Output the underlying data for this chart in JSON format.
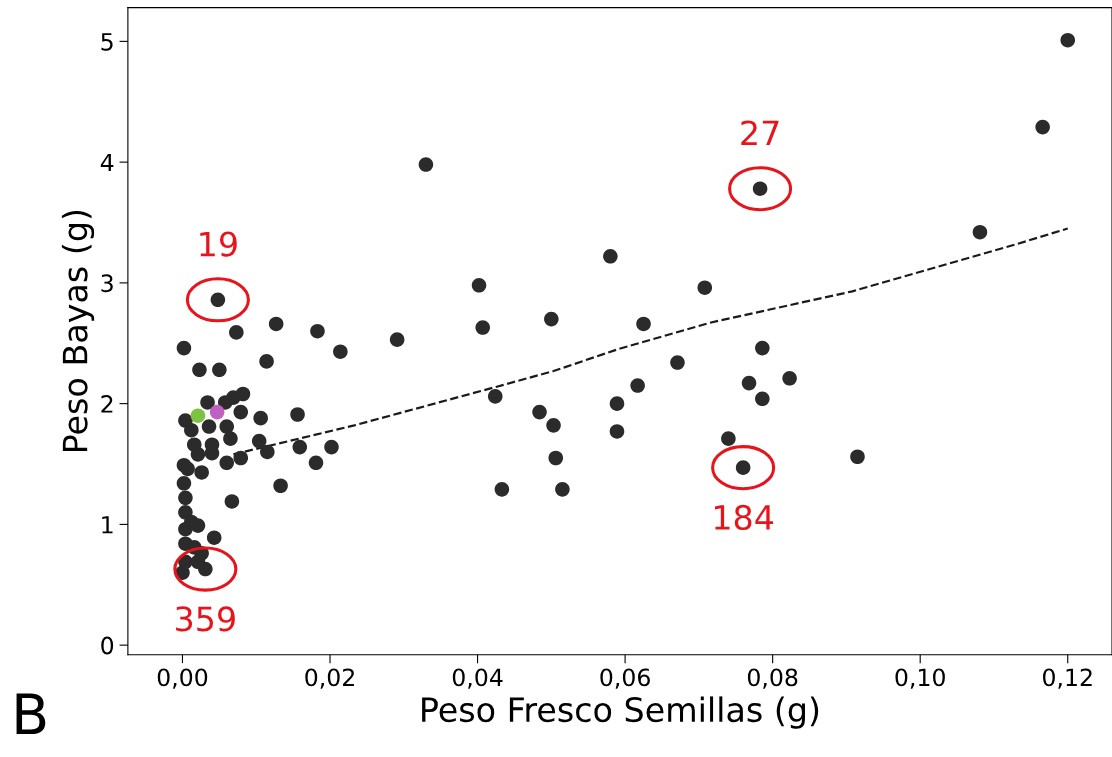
{
  "chart_data": {
    "type": "scatter",
    "xlabel": "Peso Fresco Semillas (g)",
    "ylabel": "Peso Bayas (g)",
    "xlim": [
      -0.0074,
      0.126
    ],
    "ylim": [
      -0.08,
      5.28
    ],
    "xticks": [
      {
        "value": 0.0,
        "label": "0,00"
      },
      {
        "value": 0.02,
        "label": "0,02"
      },
      {
        "value": 0.04,
        "label": "0,04"
      },
      {
        "value": 0.06,
        "label": "0,06"
      },
      {
        "value": 0.08,
        "label": "0,08"
      },
      {
        "value": 0.1,
        "label": "0,10"
      },
      {
        "value": 0.12,
        "label": "0,12"
      }
    ],
    "yticks": [
      0,
      1,
      2,
      3,
      4,
      5
    ],
    "grid": false,
    "marker": "circle",
    "series": [
      {
        "color": "#2b2b2b",
        "x": [
          0.12,
          0.1166,
          0.1081,
          0.033,
          0.0783,
          0.058,
          0.0402,
          0.0708,
          0.05,
          0.0407,
          0.0625,
          0.0291,
          0.0214,
          0.0183,
          0.0127,
          0.0114,
          0.0073,
          0.0048,
          0.0002,
          0.0023,
          0.005,
          0.0786,
          0.0671,
          0.0823,
          0.0768,
          0.0617,
          0.0786,
          0.0589,
          0.0424,
          0.0484,
          0.0503,
          0.0589,
          0.074,
          0.0915,
          0.0506,
          0.076,
          0.0433,
          0.0515,
          0.0156,
          0.0159,
          0.0202,
          0.0181,
          0.0133,
          0.0106,
          0.0104,
          0.0115,
          0.0082,
          0.0067,
          0.0043,
          0.0031,
          0.0,
          0.0004,
          0.0034,
          0.0058,
          0.0069,
          0.0079,
          0.006,
          0.0036,
          0.0012,
          0.0016,
          0.004,
          0.0065,
          0.006,
          0.004,
          0.0021,
          0.0002,
          0.0007,
          0.0026,
          0.0079,
          0.0002,
          0.0004,
          0.0004,
          0.0012,
          0.0004,
          0.0021,
          0.0004,
          0.0016,
          0.0026,
          0.0004,
          0.0021
        ],
        "values": [
          5.01,
          4.29,
          3.42,
          3.98,
          3.78,
          3.22,
          2.98,
          2.96,
          2.7,
          2.63,
          2.66,
          2.53,
          2.43,
          2.6,
          2.66,
          2.35,
          2.59,
          2.86,
          2.46,
          2.28,
          2.28,
          2.46,
          2.34,
          2.21,
          2.17,
          2.15,
          2.04,
          2.0,
          2.06,
          1.93,
          1.82,
          1.77,
          1.71,
          1.56,
          1.55,
          1.47,
          1.29,
          1.29,
          1.91,
          1.64,
          1.64,
          1.51,
          1.32,
          1.88,
          1.69,
          1.6,
          2.08,
          1.19,
          0.89,
          0.63,
          0.6,
          1.86,
          2.01,
          2.01,
          2.05,
          1.93,
          1.81,
          1.81,
          1.78,
          1.66,
          1.66,
          1.71,
          1.51,
          1.59,
          1.58,
          1.49,
          1.46,
          1.43,
          1.55,
          1.34,
          1.22,
          1.1,
          1.02,
          0.96,
          0.99,
          0.84,
          0.81,
          0.76,
          0.69,
          0.69
        ]
      },
      {
        "color": "#7dc242",
        "x": [
          0.0021
        ],
        "values": [
          1.9
        ]
      },
      {
        "color": "#c060c0",
        "x": [
          0.0047
        ],
        "values": [
          1.93
        ]
      },
      {
        "type": "line",
        "line_style": "dashed",
        "marker": "none",
        "color": "#1a1a1a",
        "x": [
          0.0069,
          0.0233,
          0.0426,
          0.0503,
          0.059,
          0.0715,
          0.0908,
          0.113,
          0.12
        ],
        "values": [
          1.58,
          1.82,
          2.14,
          2.27,
          2.45,
          2.67,
          2.93,
          3.32,
          3.45
        ]
      }
    ],
    "annotations": [
      {
        "text": "27",
        "x": 0.0783,
        "y": 3.78
      },
      {
        "text": "19",
        "x": 0.0048,
        "y": 2.86
      },
      {
        "text": "184",
        "x": 0.076,
        "y": 1.47
      },
      {
        "text": "359",
        "x": 0.0031,
        "y": 0.63
      },
      "B"
    ]
  }
}
